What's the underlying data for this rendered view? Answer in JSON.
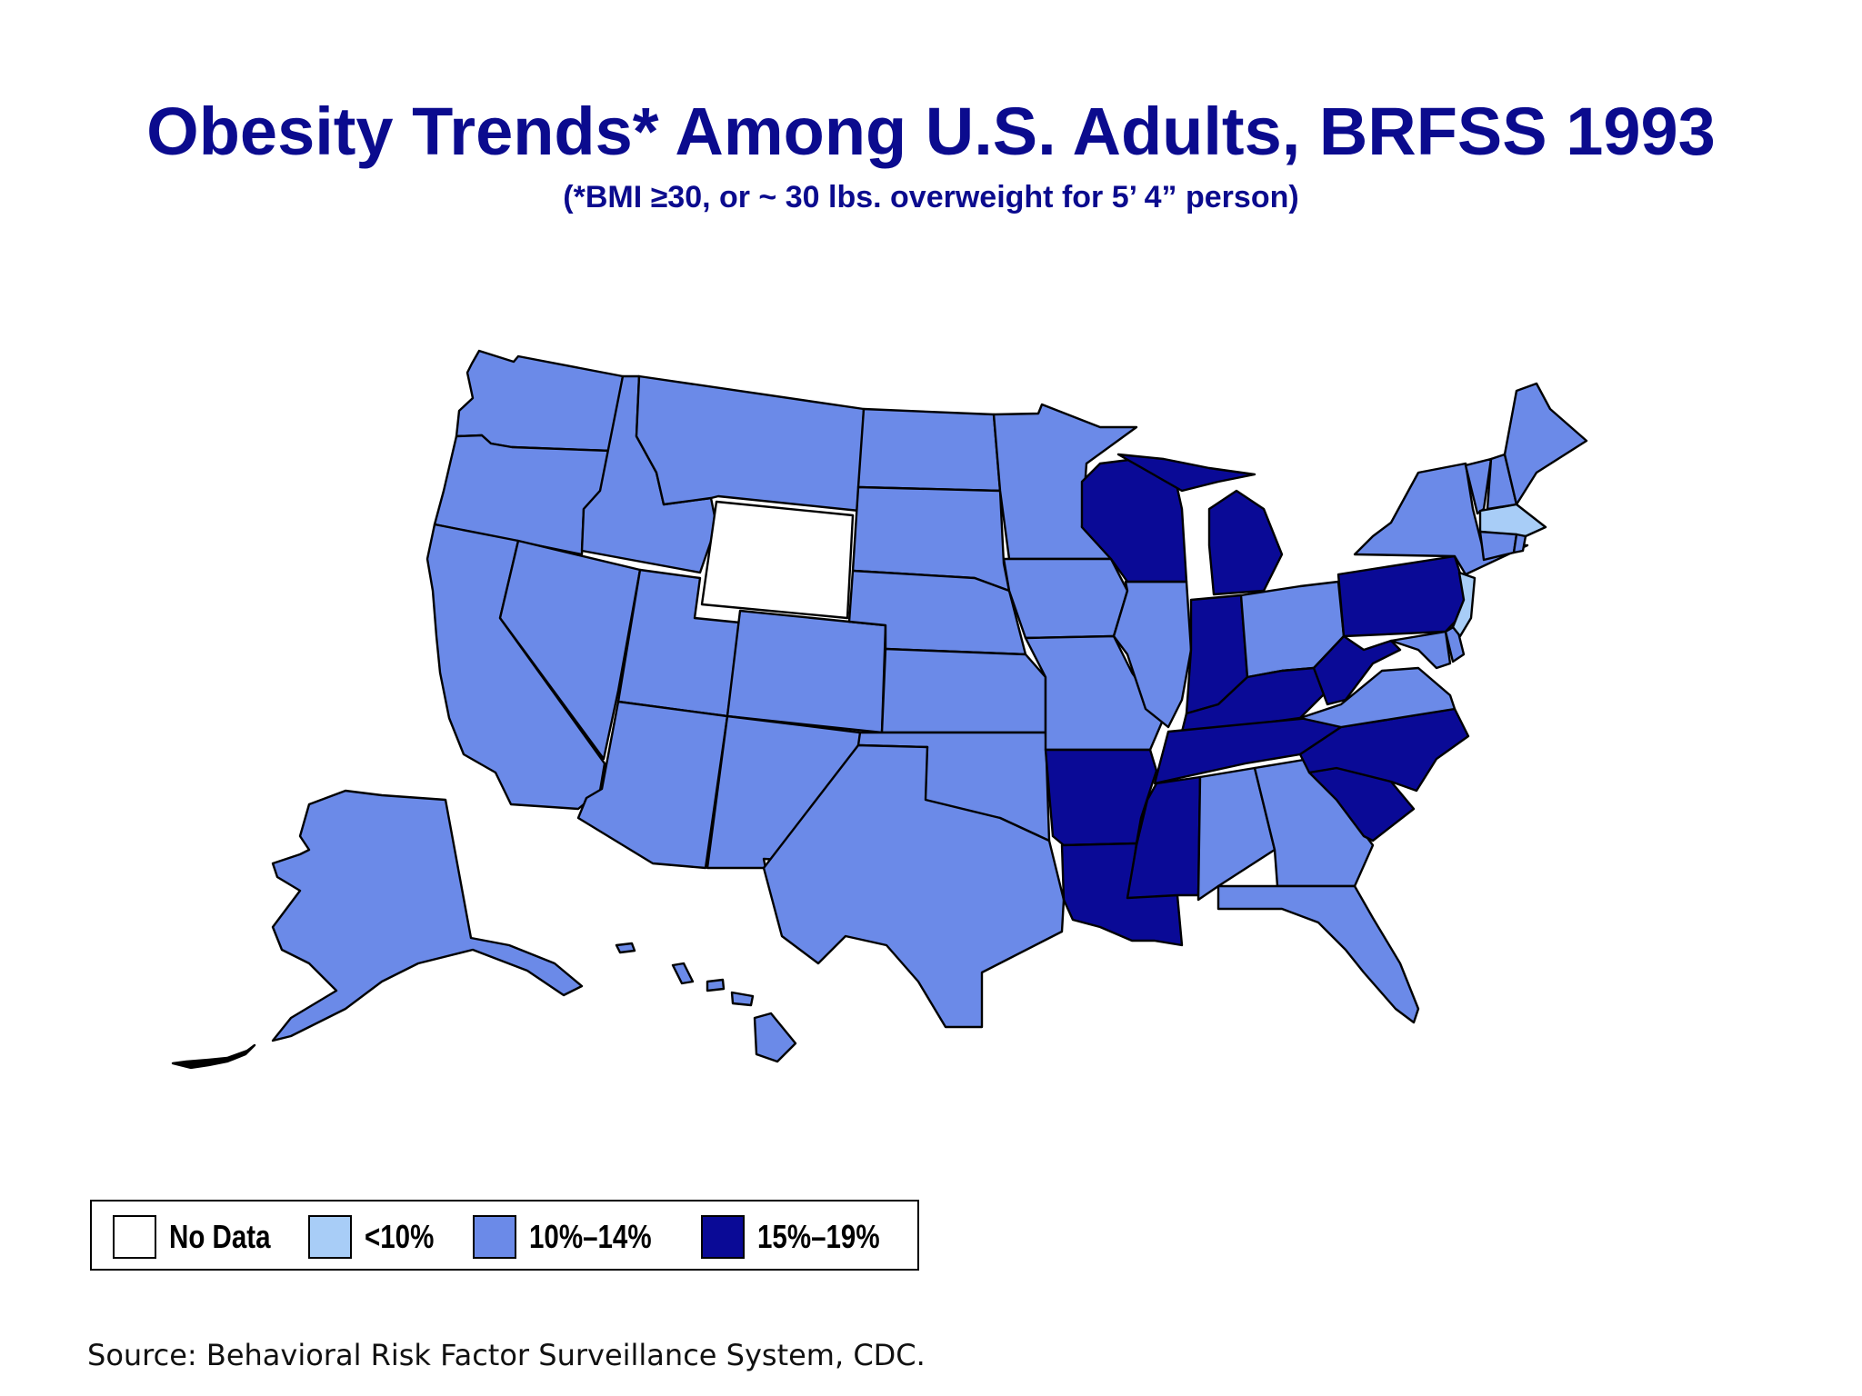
{
  "title": "Obesity Trends* Among U.S. Adults, BRFSS 1993",
  "subtitle": "(*BMI ≥30, or ~ 30 lbs. overweight for 5’ 4” person)",
  "colors": {
    "no_data": "#ffffff",
    "lt10": "#a8cdf7",
    "r10_14": "#6b8ae8",
    "r15_19": "#0a0a96",
    "title": "#0b0b8e"
  },
  "legend": [
    {
      "label": "No Data",
      "color": "#ffffff"
    },
    {
      "label": "<10%",
      "color": "#a8cdf7"
    },
    {
      "label": "10%–14%",
      "color": "#6b8ae8"
    },
    {
      "label": "15%–19%",
      "color": "#0a0a96"
    }
  ],
  "state_categories": {
    "15%–19%": [
      "Wisconsin",
      "Michigan",
      "Indiana",
      "Pennsylvania",
      "West Virginia",
      "Kentucky",
      "Tennessee",
      "North Carolina",
      "South Carolina",
      "Arkansas",
      "Louisiana",
      "Mississippi"
    ],
    "<10%": [
      "Massachusetts",
      "New Jersey"
    ],
    "No Data": [
      "Wyoming"
    ]
  },
  "source": "Source: Behavioral Risk Factor Surveillance System, CDC."
}
